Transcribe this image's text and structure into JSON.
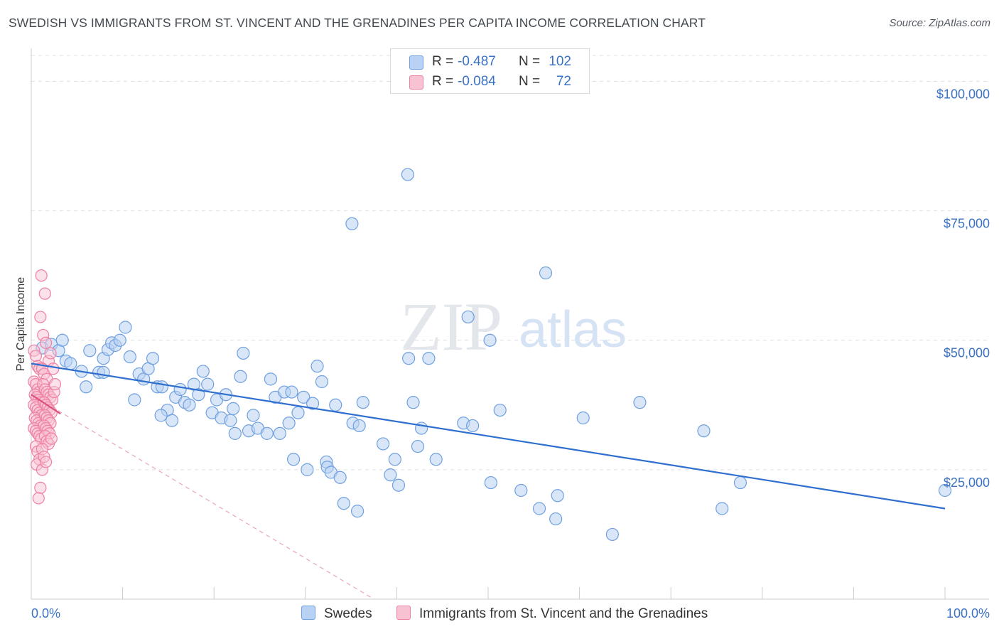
{
  "title": "SWEDISH VS IMMIGRANTS FROM ST. VINCENT AND THE GRENADINES PER CAPITA INCOME CORRELATION CHART",
  "source": "Source: ZipAtlas.com",
  "watermark": {
    "zip": "ZIP",
    "atlas": "atlas"
  },
  "colors": {
    "blue": "#6fa0e0",
    "blue_fill": "#b9d2f3",
    "blue_line": "#2f6fd0",
    "pink": "#ef7fa3",
    "pink_fill": "#f7c3d3",
    "pink_line": "#e0507e",
    "tick_text": "#3a72c4",
    "grid": "#dcdfe4"
  },
  "legend": {
    "rows": [
      {
        "r_label": "R =",
        "r_value": "-0.487",
        "n_label": "N =",
        "n_value": "102"
      },
      {
        "r_label": "R =",
        "r_value": "-0.084",
        "n_label": "N =",
        "n_value": "72"
      }
    ]
  },
  "bottom_legend": [
    "Swedes",
    "Immigrants from St. Vincent and the Grenadines"
  ],
  "chart_data": {
    "type": "scatter",
    "title": "SWEDISH VS IMMIGRANTS FROM ST. VINCENT AND THE GRENADINES PER CAPITA INCOME CORRELATION CHART",
    "xlabel": "",
    "ylabel": "Per Capita Income",
    "xlim": [
      0,
      100
    ],
    "ylim": [
      0,
      105000
    ],
    "x_tick_labels": [
      "0.0%",
      "100.0%"
    ],
    "y_ticks": [
      25000,
      50000,
      75000,
      100000
    ],
    "y_tick_labels": [
      "$25,000",
      "$50,000",
      "$75,000",
      "$100,000"
    ],
    "grid": true,
    "legend_position": "top-center",
    "series": [
      {
        "name": "Swedes",
        "color": "#6fa0e0",
        "trend": {
          "x0": 0,
          "y0": 45500,
          "x1": 100,
          "y1": 17500
        },
        "points": [
          [
            1.2,
            48500
          ],
          [
            2.2,
            49200
          ],
          [
            3.0,
            48000
          ],
          [
            3.4,
            50000
          ],
          [
            3.8,
            46000
          ],
          [
            4.3,
            45500
          ],
          [
            5.5,
            44000
          ],
          [
            6.0,
            41000
          ],
          [
            6.4,
            48000
          ],
          [
            7.4,
            43800
          ],
          [
            7.9,
            43800
          ],
          [
            7.9,
            46500
          ],
          [
            8.4,
            48200
          ],
          [
            8.8,
            49500
          ],
          [
            9.2,
            49000
          ],
          [
            9.7,
            50000
          ],
          [
            10.3,
            52500
          ],
          [
            10.8,
            46800
          ],
          [
            11.3,
            38500
          ],
          [
            11.8,
            43500
          ],
          [
            12.3,
            42500
          ],
          [
            12.8,
            44500
          ],
          [
            13.3,
            46500
          ],
          [
            13.8,
            41000
          ],
          [
            14.3,
            41000
          ],
          [
            14.9,
            36500
          ],
          [
            15.4,
            34500
          ],
          [
            15.8,
            39000
          ],
          [
            16.3,
            40500
          ],
          [
            16.8,
            38000
          ],
          [
            17.3,
            37500
          ],
          [
            17.8,
            41500
          ],
          [
            18.3,
            39500
          ],
          [
            18.8,
            44000
          ],
          [
            19.3,
            41500
          ],
          [
            19.8,
            36000
          ],
          [
            20.3,
            38500
          ],
          [
            20.8,
            35000
          ],
          [
            21.3,
            39500
          ],
          [
            21.8,
            34500
          ],
          [
            22.3,
            32000
          ],
          [
            22.9,
            43000
          ],
          [
            23.2,
            47500
          ],
          [
            23.8,
            32500
          ],
          [
            24.3,
            35500
          ],
          [
            24.8,
            33000
          ],
          [
            25.8,
            32000
          ],
          [
            26.2,
            42500
          ],
          [
            26.7,
            39000
          ],
          [
            27.2,
            32000
          ],
          [
            27.7,
            40000
          ],
          [
            28.2,
            34000
          ],
          [
            28.7,
            27000
          ],
          [
            29.2,
            36000
          ],
          [
            29.8,
            39000
          ],
          [
            30.2,
            25000
          ],
          [
            30.8,
            37800
          ],
          [
            31.3,
            45000
          ],
          [
            31.8,
            42000
          ],
          [
            32.3,
            26500
          ],
          [
            32.4,
            25500
          ],
          [
            32.8,
            24500
          ],
          [
            33.3,
            37500
          ],
          [
            33.8,
            23500
          ],
          [
            34.2,
            18500
          ],
          [
            35.2,
            34000
          ],
          [
            35.7,
            17000
          ],
          [
            35.9,
            33500
          ],
          [
            36.3,
            38000
          ],
          [
            38.5,
            30000
          ],
          [
            39.3,
            24000
          ],
          [
            39.8,
            27000
          ],
          [
            40.2,
            22000
          ],
          [
            41.3,
            46500
          ],
          [
            41.8,
            38000
          ],
          [
            42.3,
            29500
          ],
          [
            42.7,
            33000
          ],
          [
            44.3,
            27000
          ],
          [
            47.3,
            34000
          ],
          [
            48.3,
            33500
          ],
          [
            50.3,
            22500
          ],
          [
            51.3,
            36500
          ],
          [
            53.6,
            21000
          ],
          [
            55.6,
            17500
          ],
          [
            57.4,
            15500
          ],
          [
            57.6,
            20000
          ],
          [
            60.4,
            35000
          ],
          [
            63.6,
            12500
          ],
          [
            66.6,
            38000
          ],
          [
            73.6,
            32500
          ],
          [
            75.6,
            17500
          ],
          [
            77.6,
            22500
          ],
          [
            100.0,
            21000
          ],
          [
            41.2,
            82000
          ],
          [
            35.1,
            72500
          ],
          [
            56.3,
            63000
          ],
          [
            47.8,
            54500
          ],
          [
            50.2,
            50000
          ],
          [
            43.5,
            46500
          ],
          [
            28.5,
            40000
          ],
          [
            14.2,
            35500
          ],
          [
            22.1,
            36800
          ]
        ]
      },
      {
        "name": "Immigrants from St. Vincent and the Grenadines",
        "color": "#ef7fa3",
        "trend": {
          "x0": 0,
          "y0": 39500,
          "x1": 3.2,
          "y1": 35800
        },
        "trend_dashed": {
          "x0": 0,
          "y0": 39500,
          "x1": 37.5,
          "y1": 0
        },
        "points": [
          [
            0.3,
            48000
          ],
          [
            0.5,
            47000
          ],
          [
            0.7,
            45000
          ],
          [
            0.9,
            44500
          ],
          [
            0.3,
            42000
          ],
          [
            0.5,
            41500
          ],
          [
            0.7,
            40500
          ],
          [
            0.9,
            40000
          ],
          [
            0.4,
            39500
          ],
          [
            0.6,
            39000
          ],
          [
            0.8,
            38500
          ],
          [
            1.0,
            38000
          ],
          [
            0.3,
            37500
          ],
          [
            0.5,
            37000
          ],
          [
            0.7,
            36500
          ],
          [
            0.9,
            36000
          ],
          [
            1.1,
            35500
          ],
          [
            0.4,
            35000
          ],
          [
            0.6,
            34500
          ],
          [
            0.8,
            34000
          ],
          [
            1.0,
            33500
          ],
          [
            0.3,
            33000
          ],
          [
            0.5,
            32500
          ],
          [
            0.7,
            32000
          ],
          [
            0.9,
            31500
          ],
          [
            1.1,
            31000
          ],
          [
            0.5,
            29500
          ],
          [
            0.7,
            28500
          ],
          [
            0.9,
            27000
          ],
          [
            0.6,
            26000
          ],
          [
            1.2,
            25000
          ],
          [
            1.0,
            21500
          ],
          [
            0.8,
            19500
          ],
          [
            1.1,
            62500
          ],
          [
            1.5,
            59000
          ],
          [
            1.0,
            54500
          ],
          [
            1.3,
            51000
          ],
          [
            1.6,
            49500
          ],
          [
            1.9,
            46000
          ],
          [
            2.1,
            47500
          ],
          [
            1.2,
            44500
          ],
          [
            1.4,
            43500
          ],
          [
            1.7,
            42500
          ],
          [
            1.3,
            41500
          ],
          [
            1.5,
            40500
          ],
          [
            1.7,
            40000
          ],
          [
            1.9,
            39500
          ],
          [
            2.1,
            39000
          ],
          [
            2.3,
            38500
          ],
          [
            2.5,
            40000
          ],
          [
            1.4,
            38000
          ],
          [
            1.6,
            37500
          ],
          [
            1.8,
            37000
          ],
          [
            2.0,
            36500
          ],
          [
            2.2,
            36000
          ],
          [
            1.5,
            35500
          ],
          [
            1.7,
            35000
          ],
          [
            1.9,
            34500
          ],
          [
            2.1,
            34000
          ],
          [
            1.4,
            33500
          ],
          [
            1.6,
            33000
          ],
          [
            1.8,
            32500
          ],
          [
            2.0,
            32000
          ],
          [
            1.5,
            31500
          ],
          [
            1.7,
            30500
          ],
          [
            1.9,
            30000
          ],
          [
            2.4,
            44500
          ],
          [
            2.6,
            41500
          ],
          [
            1.2,
            29000
          ],
          [
            1.4,
            27500
          ],
          [
            1.6,
            26500
          ],
          [
            2.2,
            31000
          ]
        ]
      }
    ]
  }
}
